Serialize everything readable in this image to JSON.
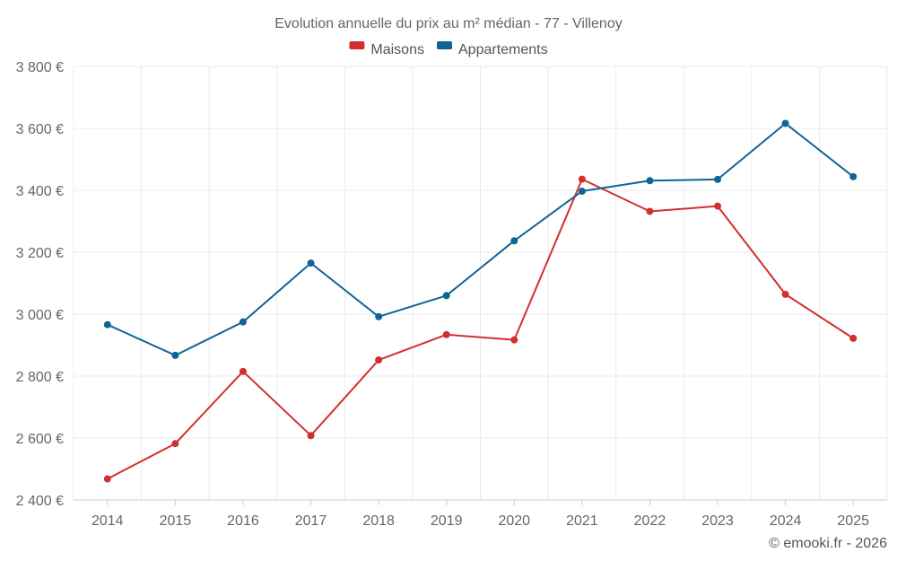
{
  "chart_data": {
    "type": "line",
    "title": "Evolution annuelle du prix au m² médian - 77 - Villenoy",
    "categories": [
      "2014",
      "2015",
      "2016",
      "2017",
      "2018",
      "2019",
      "2020",
      "2021",
      "2022",
      "2023",
      "2024",
      "2025"
    ],
    "series": [
      {
        "name": "Maisons",
        "color": "#d32f2f",
        "values": [
          2468,
          2582,
          2815,
          2608,
          2852,
          2934,
          2917,
          3436,
          3332,
          3349,
          3064,
          2922
        ]
      },
      {
        "name": "Appartements",
        "color": "#0f6496",
        "values": [
          2966,
          2867,
          2975,
          3165,
          2992,
          3060,
          3237,
          3397,
          3431,
          3435,
          3616,
          3444
        ]
      }
    ],
    "ylim": [
      2400,
      3800
    ],
    "yticks": [
      2400,
      2600,
      2800,
      3000,
      3200,
      3400,
      3600,
      3800
    ],
    "ytick_labels": [
      "2 400 €",
      "2 600 €",
      "2 800 €",
      "3 000 €",
      "3 200 €",
      "3 400 €",
      "3 600 €",
      "3 800 €"
    ],
    "xlabel": "",
    "ylabel": "",
    "grid": true,
    "legend_position": "top-center"
  },
  "credit": "© emooki.fr - 2026",
  "colors": {
    "grid": "#ebebeb",
    "axis": "#cccccc",
    "text": "#666666"
  }
}
